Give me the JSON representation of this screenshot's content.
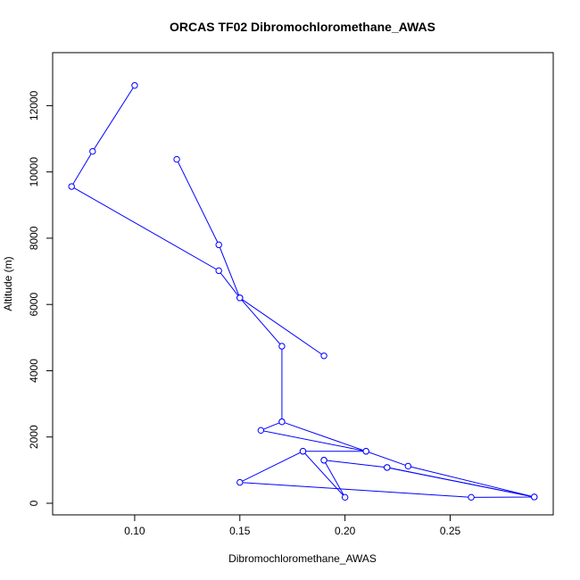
{
  "chart_data": {
    "type": "line",
    "title": "ORCAS TF02 Dibromochloromethane_AWAS",
    "xlabel": "Dibromochloromethane_AWAS",
    "ylabel": "Altitude (m)",
    "xlim": [
      0.061,
      0.299
    ],
    "ylim": [
      -350,
      13600
    ],
    "xticks": [
      0.1,
      0.15,
      0.2,
      0.25
    ],
    "xtick_labels": [
      "0.10",
      "0.15",
      "0.20",
      "0.25"
    ],
    "yticks": [
      0,
      2000,
      4000,
      6000,
      8000,
      10000,
      12000
    ],
    "ytick_labels": [
      "0",
      "2000",
      "4000",
      "6000",
      "8000",
      "10000",
      "12000"
    ],
    "color": "#0000ff",
    "grid": false,
    "series": [
      {
        "x": [
          0.12,
          0.14,
          0.15,
          0.14,
          0.07,
          0.08,
          0.1
        ],
        "y": [
          10380,
          7800,
          6200,
          7020,
          9560,
          10620,
          12610
        ]
      },
      {
        "x": [
          0.19,
          0.15,
          0.17,
          0.17,
          0.16,
          0.21,
          0.18,
          0.2,
          0.19
        ],
        "y": [
          4450,
          6200,
          4740,
          2460,
          2200,
          1570,
          1570,
          180,
          1300
        ]
      },
      {
        "x": [
          0.22,
          0.29,
          0.23,
          0.21,
          0.17
        ],
        "y": [
          1080,
          190,
          1120,
          1570,
          2460
        ]
      },
      {
        "x": [
          0.19,
          0.22,
          0.29,
          0.26,
          0.15,
          0.18
        ],
        "y": [
          1300,
          1080,
          190,
          180,
          630,
          1570
        ]
      }
    ]
  }
}
